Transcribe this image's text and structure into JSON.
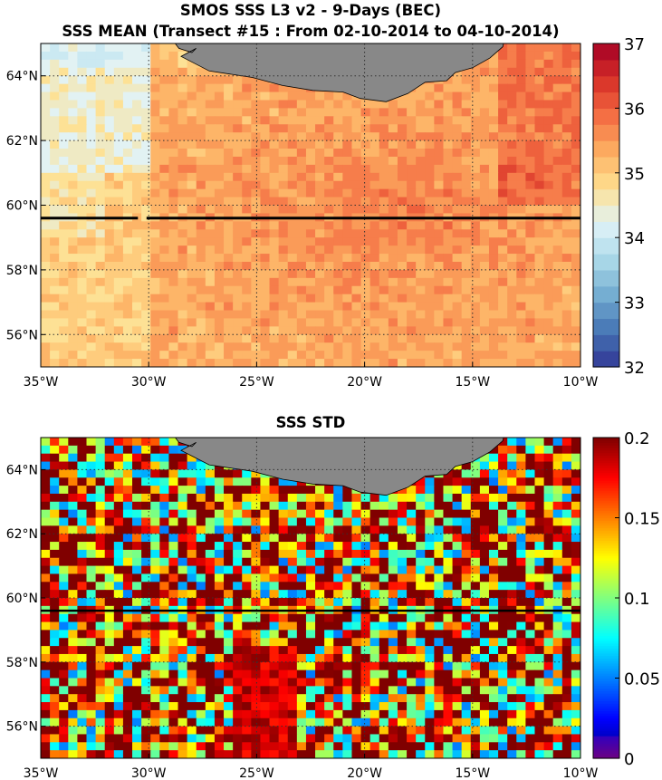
{
  "figure": {
    "title_line1": "SMOS SSS L3 v2 - 9-Days (BEC)",
    "title_line2": "SSS MEAN (Transect #15 : From 02-10-2014 to 04-10-2014)"
  },
  "colors": {
    "land": "#888888",
    "transect": "#000000",
    "grid": "#333333"
  },
  "chart_data": [
    {
      "type": "heatmap",
      "title": "SSS MEAN (Transect #15 : From 02-10-2014 to 04-10-2014)",
      "projection": "lon-lat",
      "xlim": [
        -35,
        -10
      ],
      "ylim": [
        55,
        65
      ],
      "xticks": [
        -35,
        -30,
        -25,
        -20,
        -15,
        -10
      ],
      "xtick_labels": [
        "35°W",
        "30°W",
        "25°W",
        "20°W",
        "15°W",
        "10°W"
      ],
      "yticks": [
        56,
        58,
        60,
        62,
        64
      ],
      "ytick_labels": [
        "56°N",
        "58°N",
        "60°N",
        "62°N",
        "64°N"
      ],
      "colorbar": {
        "min": 32,
        "max": 37,
        "ticks": [
          32,
          33,
          34,
          35,
          36,
          37
        ],
        "tick_labels": [
          "32",
          "33",
          "34",
          "35",
          "36",
          "37"
        ],
        "colormap": "RdYlBu_r",
        "levels": 20
      },
      "transect": {
        "lat": 59.6,
        "lon_start": -35,
        "lon_end": -10,
        "gap_lon": [
          -30.5,
          -30.1
        ]
      },
      "land": "Iceland (south coast, top of map)",
      "grid": true
    },
    {
      "type": "heatmap",
      "title": "SSS STD",
      "projection": "lon-lat",
      "xlim": [
        -35,
        -10
      ],
      "ylim": [
        55,
        65
      ],
      "xticks": [
        -35,
        -30,
        -25,
        -20,
        -15,
        -10
      ],
      "xtick_labels": [
        "35°W",
        "30°W",
        "25°W",
        "20°W",
        "15°W",
        "10°W"
      ],
      "yticks": [
        56,
        58,
        60,
        62,
        64
      ],
      "ytick_labels": [
        "56°N",
        "58°N",
        "60°N",
        "62°N",
        "64°N"
      ],
      "colorbar": {
        "min": 0,
        "max": 0.2,
        "ticks": [
          0,
          0.05,
          0.1,
          0.15,
          0.2
        ],
        "tick_labels": [
          "0",
          "0.05",
          "0.1",
          "0.15",
          "0.2"
        ],
        "colormap": "jet"
      },
      "transect": {
        "lat": 59.6,
        "lon_start": -35,
        "lon_end": -10
      },
      "land": "Iceland (south coast, top of map)",
      "grid": true
    }
  ]
}
